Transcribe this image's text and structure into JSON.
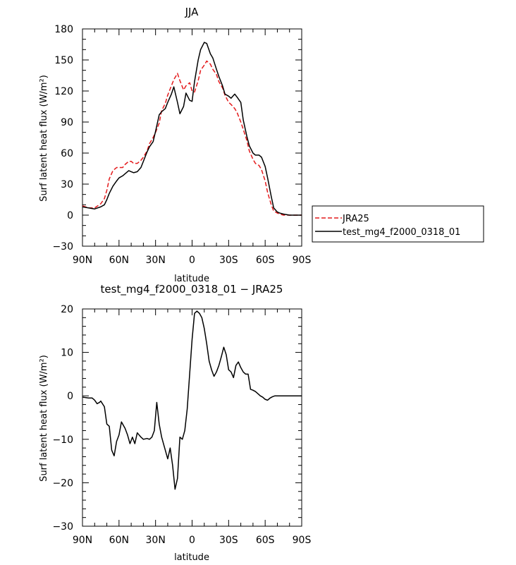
{
  "chart_data": [
    {
      "type": "line",
      "title": "JJA",
      "xlabel": "latitude",
      "ylabel": "Surf latent heat flux (W/m²)",
      "xlim": [
        -90,
        90
      ],
      "ylim": [
        -30,
        180
      ],
      "xticks": [
        -90,
        -60,
        -30,
        0,
        30,
        60,
        90
      ],
      "xtick_labels": [
        "90N",
        "60N",
        "30N",
        "0",
        "30S",
        "60S",
        "90S"
      ],
      "yticks": [
        -30,
        0,
        30,
        60,
        90,
        120,
        150,
        180
      ],
      "ytick_labels": [
        "−30",
        "0",
        "30",
        "60",
        "90",
        "120",
        "150",
        "180"
      ],
      "legend_position": "right",
      "series": [
        {
          "name": "JRA25",
          "color": "#e41a1c",
          "dash": "dashed",
          "x": [
            -90,
            -85,
            -80,
            -75,
            -72,
            -70,
            -68,
            -65,
            -62,
            -60,
            -57,
            -55,
            -52,
            -50,
            -48,
            -45,
            -42,
            -40,
            -37,
            -35,
            -32,
            -30,
            -27,
            -25,
            -22,
            -20,
            -17,
            -15,
            -12,
            -10,
            -7,
            -5,
            -2,
            0,
            2,
            5,
            7,
            10,
            12,
            15,
            17,
            20,
            22,
            25,
            27,
            30,
            32,
            35,
            37,
            40,
            42,
            45,
            47,
            50,
            52,
            55,
            57,
            60,
            62,
            65,
            67,
            70,
            72,
            75,
            80,
            85,
            90
          ],
          "y": [
            9,
            7,
            7,
            11,
            16,
            24,
            35,
            43,
            46,
            46,
            46,
            49,
            52,
            52,
            50,
            50,
            53,
            56,
            62,
            69,
            75,
            80,
            89,
            101,
            108,
            116,
            125,
            131,
            137,
            130,
            121,
            125,
            128,
            120,
            119,
            130,
            140,
            145,
            149,
            146,
            141,
            136,
            129,
            123,
            116,
            109,
            107,
            103,
            99,
            90,
            83,
            72,
            62,
            54,
            50,
            48,
            44,
            33,
            22,
            10,
            4,
            2,
            1,
            0,
            0,
            0,
            0
          ]
        },
        {
          "name": "test_mg4_f2000_0318_01",
          "color": "#000000",
          "dash": "solid",
          "x": [
            -90,
            -85,
            -80,
            -75,
            -72,
            -70,
            -68,
            -65,
            -62,
            -60,
            -57,
            -55,
            -52,
            -50,
            -48,
            -45,
            -42,
            -40,
            -37,
            -35,
            -32,
            -30,
            -27,
            -25,
            -22,
            -20,
            -17,
            -15,
            -12,
            -10,
            -7,
            -5,
            -2,
            0,
            2,
            5,
            7,
            10,
            12,
            15,
            17,
            20,
            22,
            25,
            27,
            30,
            32,
            35,
            37,
            40,
            42,
            45,
            47,
            50,
            52,
            55,
            57,
            60,
            62,
            65,
            67,
            70,
            72,
            75,
            80,
            85,
            90
          ],
          "y": [
            8,
            7,
            6,
            8,
            10,
            15,
            21,
            28,
            33,
            36,
            38,
            40,
            43,
            42,
            41,
            42,
            46,
            52,
            61,
            66,
            71,
            81,
            97,
            100,
            103,
            109,
            117,
            124,
            109,
            98,
            105,
            118,
            111,
            110,
            129,
            150,
            160,
            167,
            166,
            156,
            152,
            141,
            134,
            125,
            117,
            115,
            113,
            117,
            114,
            109,
            92,
            76,
            67,
            60,
            58,
            58,
            56,
            47,
            36,
            18,
            7,
            3,
            2,
            1,
            0,
            0,
            0
          ]
        }
      ]
    },
    {
      "type": "line",
      "title": "test_mg4_f2000_0318_01 − JRA25",
      "xlabel": "latitude",
      "ylabel": "Surf latent heat flux (W/m²)",
      "xlim": [
        -90,
        90
      ],
      "ylim": [
        -30,
        20
      ],
      "xticks": [
        -90,
        -60,
        -30,
        0,
        30,
        60,
        90
      ],
      "xtick_labels": [
        "90N",
        "60N",
        "30N",
        "0",
        "30S",
        "60S",
        "90S"
      ],
      "yticks": [
        -30,
        -20,
        -10,
        0,
        10,
        20
      ],
      "ytick_labels": [
        "−30",
        "−20",
        "−10",
        "0",
        "10",
        "20"
      ],
      "series": [
        {
          "color": "#000000",
          "dash": "solid",
          "x": [
            -90,
            -85,
            -82,
            -80,
            -78,
            -76,
            -75,
            -72,
            -70,
            -68,
            -66,
            -64,
            -62,
            -60,
            -58,
            -55,
            -53,
            -51,
            -49,
            -47,
            -45,
            -42,
            -40,
            -37,
            -35,
            -33,
            -31,
            -29,
            -27,
            -25,
            -23,
            -20,
            -18,
            -16,
            -14,
            -12,
            -10,
            -8,
            -6,
            -4,
            -2,
            0,
            2,
            4,
            6,
            8,
            10,
            12,
            14,
            16,
            18,
            20,
            22,
            24,
            26,
            28,
            30,
            32,
            34,
            36,
            38,
            40,
            42,
            44,
            46,
            48,
            50,
            52,
            54,
            56,
            58,
            60,
            62,
            64,
            66,
            68,
            70,
            72,
            74,
            76,
            78,
            80,
            82,
            84,
            86,
            88,
            90
          ],
          "y": [
            -0.3,
            -0.5,
            -0.5,
            -1,
            -1.8,
            -1.5,
            -1.2,
            -2.5,
            -6.5,
            -7,
            -12.5,
            -13.8,
            -10.5,
            -9,
            -6,
            -7.5,
            -9,
            -11,
            -9.5,
            -11,
            -8.5,
            -9.5,
            -10,
            -9.8,
            -10,
            -9.5,
            -8,
            -1.5,
            -6.5,
            -9.5,
            -11.5,
            -14.5,
            -12,
            -16,
            -21.5,
            -19,
            -9.5,
            -10,
            -8,
            -3,
            5,
            13,
            19,
            19.5,
            19,
            18,
            15.5,
            12,
            8,
            6,
            4.5,
            5.5,
            7,
            9,
            11.2,
            9.5,
            6,
            5.5,
            4.2,
            7,
            7.8,
            6.5,
            5.5,
            5,
            5,
            1.5,
            1.3,
            1,
            0.5,
            0,
            -0.3,
            -0.8,
            -1,
            -0.5,
            -0.2,
            0,
            0,
            0,
            0,
            0,
            0,
            0,
            0,
            0,
            0,
            0,
            0
          ]
        }
      ]
    }
  ]
}
